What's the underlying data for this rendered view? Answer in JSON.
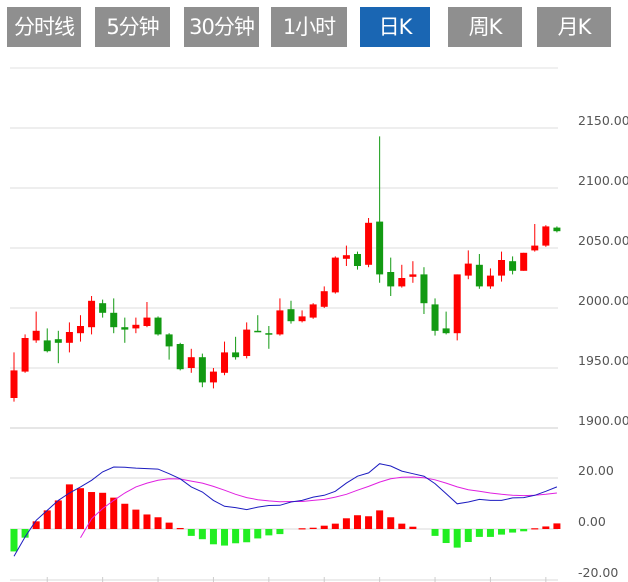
{
  "tabs": [
    {
      "label": "分时线",
      "active": false
    },
    {
      "label": "5分钟",
      "active": false
    },
    {
      "label": "30分钟",
      "active": false
    },
    {
      "label": "1小时",
      "active": false
    },
    {
      "label": "日K",
      "active": true
    },
    {
      "label": "周K",
      "active": false
    },
    {
      "label": "月K",
      "active": false
    }
  ],
  "colors": {
    "up": "#ff0000",
    "down": "#129a12",
    "hist_up": "#ff0000",
    "hist_down": "#22ee22",
    "dif": "#1c1cc0",
    "dea": "#e020e0",
    "tab_bg": "#8f8f8f",
    "tab_active": "#1a66b3"
  },
  "chart_data": [
    {
      "type": "candlestick",
      "title": "",
      "ylim": [
        1900,
        2200
      ],
      "yticks": [
        "2150.00",
        "2100.00",
        "2050.00",
        "2000.00",
        "1950.00",
        "1900.00"
      ],
      "ytick_values": [
        2150,
        2100,
        2050,
        2000,
        1950,
        1900
      ],
      "grid": true,
      "ohlc_fields": [
        "open",
        "high",
        "low",
        "close"
      ],
      "ohlc": [
        [
          1925,
          1963,
          1922,
          1948
        ],
        [
          1947,
          1978,
          1946,
          1975
        ],
        [
          1973,
          1997,
          1971,
          1981
        ],
        [
          1973,
          1983,
          1963,
          1964
        ],
        [
          1974,
          1981,
          1954,
          1971
        ],
        [
          1971,
          1988,
          1963,
          1980
        ],
        [
          1979,
          1994,
          1972,
          1985
        ],
        [
          1984,
          2010,
          1978,
          2006
        ],
        [
          2004,
          2007,
          1992,
          1996
        ],
        [
          1996,
          2008,
          1979,
          1984
        ],
        [
          1984,
          1992,
          1971,
          1982
        ],
        [
          1983,
          1992,
          1979,
          1986
        ],
        [
          1985,
          2005,
          1984,
          1992
        ],
        [
          1992,
          1993,
          1977,
          1978
        ],
        [
          1978,
          1979,
          1957,
          1968
        ],
        [
          1970,
          1971,
          1948,
          1949
        ],
        [
          1950,
          1966,
          1946,
          1959
        ],
        [
          1959,
          1962,
          1934,
          1938
        ],
        [
          1938,
          1950,
          1933,
          1947
        ],
        [
          1946,
          1972,
          1944,
          1963
        ],
        [
          1963,
          1976,
          1957,
          1959
        ],
        [
          1960,
          1988,
          1958,
          1982
        ],
        [
          1981,
          1994,
          1980,
          1980
        ],
        [
          1979,
          1985,
          1966,
          1978
        ],
        [
          1978,
          2008,
          1977,
          1998
        ],
        [
          1999,
          2006,
          1987,
          1989
        ],
        [
          1989,
          1998,
          1988,
          1993
        ],
        [
          1992,
          2004,
          1991,
          2003
        ],
        [
          2001,
          2018,
          2000,
          2014
        ],
        [
          2013,
          2043,
          2012,
          2042
        ],
        [
          2041,
          2052,
          2035,
          2044
        ],
        [
          2045,
          2047,
          2032,
          2035
        ],
        [
          2036,
          2075,
          2034,
          2071
        ],
        [
          2072,
          2143,
          2021,
          2028
        ],
        [
          2030,
          2042,
          2010,
          2018
        ],
        [
          2018,
          2036,
          2017,
          2025
        ],
        [
          2026,
          2039,
          2021,
          2028
        ],
        [
          2028,
          2034,
          1995,
          2004
        ],
        [
          2003,
          2008,
          1977,
          1981
        ],
        [
          1983,
          1997,
          1978,
          1979
        ],
        [
          1979,
          2028,
          1973,
          2028
        ],
        [
          2027,
          2048,
          2024,
          2037
        ],
        [
          2036,
          2045,
          2016,
          2018
        ],
        [
          2018,
          2033,
          2016,
          2027
        ],
        [
          2027,
          2047,
          2022,
          2040
        ],
        [
          2039,
          2043,
          2028,
          2031
        ],
        [
          2031,
          2046,
          2031,
          2046
        ],
        [
          2048,
          2070,
          2047,
          2052
        ],
        [
          2052,
          2069,
          2051,
          2068
        ],
        [
          2067,
          2068,
          2063,
          2064
        ]
      ]
    },
    {
      "type": "macd",
      "ylim": [
        -20,
        40
      ],
      "yticks": [
        "20.00",
        "0.00",
        "-20.00"
      ],
      "ytick_values": [
        20,
        0,
        -20
      ],
      "histogram": [
        -8.8,
        -3.4,
        3,
        7.3,
        11.2,
        17.5,
        16,
        14.5,
        14.2,
        12.3,
        9.9,
        7.6,
        5.7,
        4.6,
        2.5,
        0.4,
        -2.7,
        -4,
        -6,
        -6.5,
        -5.6,
        -5.2,
        -3.7,
        -2.5,
        -2,
        0,
        0.3,
        0.5,
        1.3,
        2.1,
        4.2,
        5.4,
        5,
        7.3,
        4.6,
        2.1,
        0.9,
        0,
        -2.7,
        -5.5,
        -7.3,
        -5.1,
        -3.1,
        -3.1,
        -2.2,
        -1.4,
        -0.9,
        0.3,
        1,
        2.2
      ],
      "dif": [
        -10.7,
        -3.1,
        3.4,
        7.3,
        11.2,
        14.1,
        16.5,
        19.1,
        22.4,
        24.3,
        24.2,
        23.9,
        23.7,
        23.5,
        21.7,
        19.7,
        16.5,
        14.5,
        11.2,
        8.9,
        8.4,
        7.6,
        8.6,
        9.2,
        9.3,
        10.6,
        11.2,
        12.5,
        13.2,
        14.8,
        18,
        20.7,
        22,
        25.6,
        24.7,
        22.7,
        21.7,
        20.7,
        17.8,
        13.9,
        9.9,
        10.6,
        11.6,
        11.2,
        11.2,
        12.2,
        12.3,
        13.2,
        14.8,
        16.5
      ],
      "dea": [
        null,
        null,
        null,
        null,
        null,
        null,
        -3.4,
        4,
        8,
        11.2,
        14.1,
        16.5,
        18,
        19.1,
        19.7,
        19.6,
        18.8,
        18,
        16.7,
        15.2,
        13.6,
        12.3,
        11.5,
        11,
        10.7,
        10.8,
        10.8,
        11.2,
        11.6,
        12.5,
        13.6,
        15.2,
        16.7,
        18.4,
        19.7,
        20.3,
        20.4,
        20.1,
        19.3,
        18,
        16.5,
        15.4,
        14.8,
        14.1,
        13.6,
        13.2,
        13.1,
        13.2,
        13.6,
        14.1
      ]
    }
  ]
}
